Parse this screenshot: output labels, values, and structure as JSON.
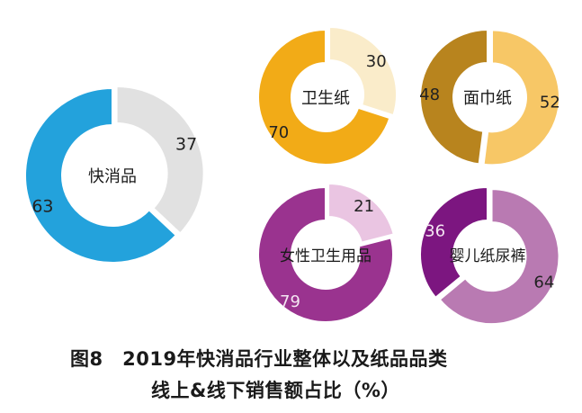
{
  "chart_data": [
    {
      "type": "pie",
      "donut": true,
      "title": "快消品",
      "slices": [
        {
          "label": "37",
          "value": 37,
          "color": "#e1e1e1"
        },
        {
          "label": "63",
          "value": 63,
          "color": "#23a2dc"
        }
      ]
    },
    {
      "type": "pie",
      "donut": true,
      "title": "卫生纸",
      "slices": [
        {
          "label": "30",
          "value": 30,
          "color": "#faecca"
        },
        {
          "label": "70",
          "value": 70,
          "color": "#f2ab17"
        }
      ]
    },
    {
      "type": "pie",
      "donut": true,
      "title": "面巾纸",
      "slices": [
        {
          "label": "52",
          "value": 52,
          "color": "#f7c766"
        },
        {
          "label": "48",
          "value": 48,
          "color": "#b8841e"
        }
      ]
    },
    {
      "type": "pie",
      "donut": true,
      "title": "女性卫生用品",
      "slices": [
        {
          "label": "21",
          "value": 21,
          "color": "#eac5e2"
        },
        {
          "label": "79",
          "value": 79,
          "color": "#9a338f"
        }
      ]
    },
    {
      "type": "pie",
      "donut": true,
      "title": "婴儿纸尿裤",
      "slices": [
        {
          "label": "64",
          "value": 64,
          "color": "#b97ab2"
        },
        {
          "label": "36",
          "value": 36,
          "color": "#7c1680"
        }
      ]
    }
  ],
  "caption": {
    "line1": "图8　2019年快消品行业整体以及纸品品类",
    "line2": "线上&线下销售额占比（%）"
  }
}
